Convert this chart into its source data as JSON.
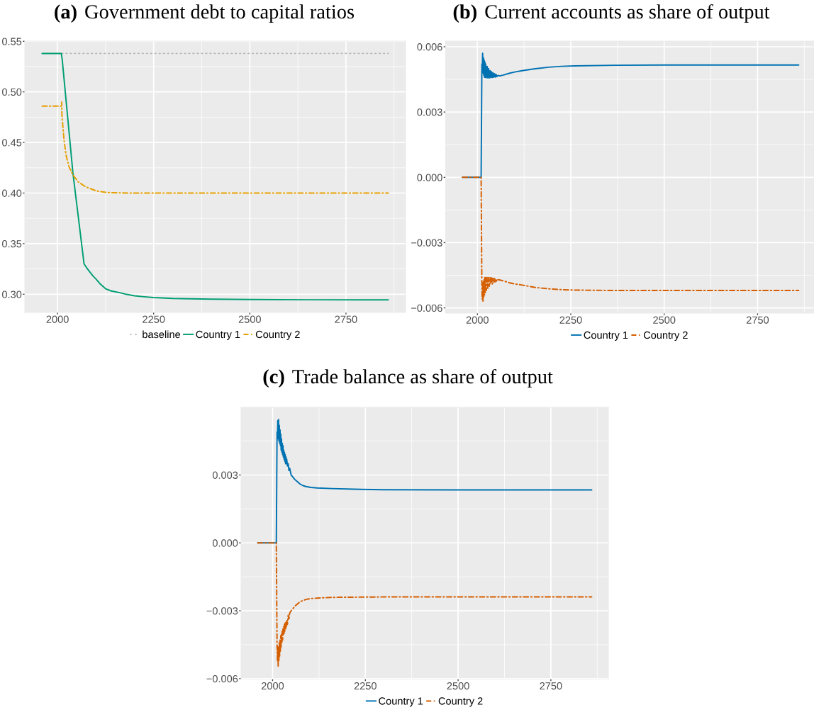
{
  "chart_data": [
    {
      "type": "line",
      "title": "(a) Government debt to capital ratios",
      "series": [
        {
          "name": "baseline",
          "color": "#b8b8b8",
          "line_style": "dotted",
          "x": [
            2011,
            2860
          ],
          "values": [
            0.538,
            0.538
          ]
        },
        {
          "name": "Country 1",
          "color": "#009e73",
          "line_style": "solid",
          "x": [
            1960,
            2010,
            2011,
            2012,
            2040,
            2069,
            2076,
            2084,
            2092,
            2100,
            2112,
            2125,
            2140,
            2162,
            2180,
            2200,
            2225,
            2250,
            2300,
            2400,
            2500,
            2650,
            2860
          ],
          "values": [
            0.538,
            0.538,
            0.535,
            0.533,
            0.42,
            0.33,
            0.326,
            0.322,
            0.3182,
            0.315,
            0.3098,
            0.3054,
            0.3032,
            0.3015,
            0.2998,
            0.2985,
            0.2975,
            0.2967,
            0.2958,
            0.2951,
            0.2948,
            0.2945,
            0.2944
          ]
        },
        {
          "name": "Country 2",
          "color": "#e69f00",
          "line_style": "dashdot",
          "x": [
            1960,
            2010,
            2011,
            2011.5,
            2017,
            2023,
            2030,
            2040,
            2054,
            2074,
            2102,
            2129,
            2190,
            2860
          ],
          "values": [
            0.486,
            0.486,
            0.49,
            0.477,
            0.452,
            0.436,
            0.426,
            0.418,
            0.411,
            0.406,
            0.402,
            0.4005,
            0.4,
            0.4
          ]
        }
      ],
      "xlim": [
        1915,
        2905
      ],
      "xticks": [
        2000,
        2250,
        2500,
        2750
      ],
      "ylim": [
        0.282,
        0.5502
      ],
      "yticks": [
        {
          "value": 0.3,
          "label": "0.30"
        },
        0.35,
        {
          "value": 0.4,
          "label": "0.40"
        },
        0.45,
        {
          "value": 0.5,
          "label": "0.50"
        },
        0.55
      ],
      "grid": true,
      "legend": "bottom"
    },
    {
      "type": "line",
      "title": "(b) Current accounts as share of output",
      "x": [
        1960,
        2010,
        2012,
        2013,
        2014,
        2015,
        2016,
        2017,
        2018,
        2019,
        2020,
        2021,
        2022,
        2024,
        2026,
        2028,
        2030,
        2032,
        2034,
        2036,
        2038,
        2040,
        2042,
        2044,
        2046,
        2048,
        2050,
        2052,
        2055,
        2060,
        2070,
        2085,
        2100,
        2120,
        2155,
        2190,
        2225,
        2260,
        2366,
        2500,
        2860
      ],
      "series": [
        {
          "name": "Country 1",
          "color": "#0072b2",
          "line_style": "solid",
          "values": [
            0,
            0,
            0.0052,
            0.0049,
            0.0057,
            0.0048,
            0.0055,
            0.0047,
            0.0054,
            0.0046,
            0.0053,
            0.0046,
            0.0052,
            0.00458,
            0.0051,
            0.00457,
            0.005,
            0.00457,
            0.0049,
            0.00458,
            0.00485,
            0.00459,
            0.0048,
            0.0046,
            0.00476,
            0.00461,
            0.00473,
            0.00463,
            0.00468,
            0.00466,
            0.0047,
            0.00478,
            0.00484,
            0.0049,
            0.00499,
            0.00506,
            0.0051,
            0.00512,
            0.00515,
            0.00516,
            0.00516
          ]
        },
        {
          "name": "Country 2",
          "color": "#d55e00",
          "line_style": "dashdot",
          "values": [
            0,
            0,
            -0.005,
            -0.0056,
            -0.0049,
            -0.0057,
            -0.0048,
            -0.0055,
            -0.0047,
            -0.0054,
            -0.0046,
            -0.0053,
            -0.0046,
            -0.0052,
            -0.0046,
            -0.0051,
            -0.0046,
            -0.005,
            -0.0046,
            -0.0049,
            -0.00462,
            -0.0049,
            -0.00464,
            -0.00485,
            -0.00465,
            -0.0048,
            -0.00467,
            -0.00478,
            -0.0047,
            -0.00472,
            -0.00476,
            -0.00484,
            -0.0049,
            -0.00495,
            -0.00506,
            -0.00512,
            -0.00516,
            -0.00518,
            -0.0052,
            -0.0052,
            -0.0052
          ]
        }
      ],
      "xlim": [
        1915,
        2901
      ],
      "xticks": [
        2000,
        2250,
        2500,
        2750
      ],
      "ylim": [
        -0.00624,
        0.00626
      ],
      "yticks": [
        {
          "value": -0.006,
          "label": "−0.006"
        },
        {
          "value": -0.003,
          "label": "−0.003"
        },
        {
          "value": 0,
          "label": "0.000"
        },
        0.003,
        0.006
      ],
      "grid": true,
      "legend": "bottom"
    },
    {
      "type": "line",
      "title": "(c) Trade balance as share of output",
      "x": [
        1960,
        2010,
        2012,
        2013,
        2014,
        2015,
        2016,
        2017,
        2018,
        2019,
        2020,
        2021,
        2022,
        2023,
        2024,
        2025,
        2026,
        2027,
        2028,
        2029,
        2030,
        2031,
        2032,
        2033,
        2034,
        2035,
        2036,
        2037,
        2038,
        2040,
        2042,
        2044,
        2046,
        2050,
        2055,
        2060,
        2067,
        2074,
        2082,
        2090,
        2103,
        2120,
        2160,
        2220,
        2300,
        2500,
        2860
      ],
      "series": [
        {
          "name": "Country 1",
          "color": "#0072b2",
          "line_style": "solid",
          "values": [
            0,
            0,
            0.0049,
            0.0046,
            0.0054,
            0.0046,
            0.00545,
            0.0045,
            0.0052,
            0.0044,
            0.005,
            0.0043,
            0.0048,
            0.0041,
            0.0046,
            0.004,
            0.0044,
            0.0039,
            0.0043,
            0.0038,
            0.0041,
            0.0037,
            0.004,
            0.0036,
            0.0039,
            0.0035,
            0.0038,
            0.0035,
            0.0037,
            0.0034,
            0.0035,
            0.0032,
            0.0033,
            0.003,
            0.0029,
            0.0028,
            0.0027,
            0.0026,
            0.00253,
            0.00249,
            0.00245,
            0.00243,
            0.0024,
            0.00237,
            0.00235,
            0.00234,
            0.00234
          ]
        },
        {
          "name": "Country 2",
          "color": "#d55e00",
          "line_style": "dashdot",
          "values": [
            0,
            0,
            -0.0046,
            -0.0052,
            -0.0046,
            -0.00545,
            -0.0046,
            -0.0052,
            -0.0044,
            -0.005,
            -0.0043,
            -0.0048,
            -0.0041,
            -0.0046,
            -0.004,
            -0.0044,
            -0.0039,
            -0.0043,
            -0.0038,
            -0.0041,
            -0.0037,
            -0.004,
            -0.0036,
            -0.0039,
            -0.0035,
            -0.0038,
            -0.0035,
            -0.0037,
            -0.0034,
            -0.0036,
            -0.0032,
            -0.0034,
            -0.0031,
            -0.003,
            -0.0029,
            -0.0028,
            -0.0027,
            -0.0026,
            -0.00255,
            -0.0025,
            -0.00246,
            -0.00244,
            -0.00241,
            -0.0024,
            -0.00239,
            -0.00239,
            -0.00239
          ]
        }
      ],
      "xlim": [
        1915,
        2905
      ],
      "xticks": [
        2000,
        2250,
        2500,
        2750
      ],
      "ylim": [
        -0.00602,
        0.00599
      ],
      "yticks": [
        {
          "value": -0.006,
          "label": "−0.006"
        },
        {
          "value": -0.003,
          "label": "−0.003"
        },
        {
          "value": 0,
          "label": "0.000"
        },
        0.003
      ],
      "grid": true,
      "legend": "bottom"
    }
  ]
}
